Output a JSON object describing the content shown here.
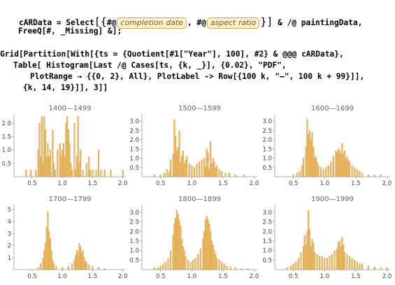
{
  "code": {
    "line1a": "cARData = Select",
    "line1b": "#@",
    "chip1": "completion date",
    "line1c": ", #@",
    "chip2": "aspect ratio",
    "line1d": "& /@ paintingData,",
    "line2": "FreeQ[#, _Missing] &];",
    "line3": "Grid[Partition[With[{ts = {Quotient[#1[\"Year\"], 100], #2} & @@@ cARData},",
    "line4": "Table[ Histogram[Last /@ Cases[ts, {k, _}], {0.02}, \"PDF\",",
    "line5": "PlotRange → {{0, 2}, All}, PlotLabel -> Row[{100 k, \"—\", 100 k + 99}]],",
    "line6": "{k, 14, 19}]], 3]]"
  },
  "chart_data": [
    {
      "type": "bar",
      "title": "1400—1499",
      "xlim": [
        0.2,
        2.05
      ],
      "ylim": [
        0,
        2.35
      ],
      "x_ticks": [
        0.5,
        1.0,
        1.5,
        2.0
      ],
      "y_ticks": [
        0.5,
        1.0,
        1.5,
        2.0
      ],
      "x": [
        0.4,
        0.48,
        0.56,
        0.6,
        0.62,
        0.64,
        0.66,
        0.68,
        0.7,
        0.72,
        0.74,
        0.76,
        0.78,
        0.8,
        0.84,
        0.86,
        0.88,
        0.92,
        0.96,
        0.98,
        1.0,
        1.02,
        1.04,
        1.06,
        1.08,
        1.1,
        1.12,
        1.14,
        1.16,
        1.2,
        1.22,
        1.24,
        1.26,
        1.28,
        1.3,
        1.34,
        1.4,
        1.44,
        1.46,
        1.5,
        1.56,
        1.6,
        1.64,
        1.7,
        1.8,
        2.0
      ],
      "values": [
        0.25,
        0.25,
        0.25,
        1.0,
        2.0,
        0.75,
        2.25,
        0.5,
        2.25,
        1.75,
        0.75,
        1.25,
        0.75,
        1.0,
        1.75,
        0.5,
        0.25,
        1.0,
        1.25,
        0.75,
        1.0,
        1.25,
        0.75,
        2.0,
        2.25,
        1.75,
        1.25,
        0.5,
        0.25,
        2.0,
        0.25,
        0.75,
        2.25,
        0.5,
        1.0,
        0.25,
        0.5,
        0.75,
        0.25,
        0.25,
        0.25,
        1.0,
        0.25,
        0.25,
        0.25,
        0.25
      ]
    },
    {
      "type": "bar",
      "title": "1500—1599",
      "xlim": [
        0.2,
        2.05
      ],
      "ylim": [
        0,
        3.4
      ],
      "x_ticks": [
        0.5,
        1.0,
        1.5,
        2.0
      ],
      "y_ticks": [
        0.5,
        1.0,
        1.5,
        2.0,
        2.5,
        3.0
      ],
      "x": [
        0.4,
        0.5,
        0.56,
        0.6,
        0.64,
        0.66,
        0.7,
        0.72,
        0.74,
        0.76,
        0.78,
        0.8,
        0.82,
        0.84,
        0.86,
        0.88,
        0.9,
        0.92,
        0.96,
        1.0,
        1.04,
        1.08,
        1.12,
        1.16,
        1.2,
        1.22,
        1.24,
        1.26,
        1.28,
        1.3,
        1.32,
        1.34,
        1.36,
        1.38,
        1.4,
        1.44,
        1.48,
        1.54,
        1.6,
        1.7,
        1.84
      ],
      "values": [
        0.1,
        0.1,
        0.2,
        0.4,
        0.3,
        0.9,
        1.2,
        3.1,
        2.2,
        1.4,
        1.6,
        2.5,
        0.8,
        1.1,
        1.4,
        0.7,
        0.9,
        1.1,
        0.7,
        0.6,
        0.5,
        0.7,
        0.8,
        0.9,
        1.0,
        0.5,
        1.5,
        1.3,
        0.4,
        1.9,
        0.7,
        1.0,
        0.8,
        0.5,
        0.6,
        0.4,
        0.3,
        0.2,
        0.2,
        0.1,
        0.1
      ]
    },
    {
      "type": "bar",
      "title": "1600—1699",
      "xlim": [
        0.2,
        2.05
      ],
      "ylim": [
        0,
        3.4
      ],
      "x_ticks": [
        0.5,
        1.0,
        1.5,
        2.0
      ],
      "y_ticks": [
        0.5,
        1.0,
        1.5,
        2.0,
        2.5,
        3.0
      ],
      "x": [
        0.5,
        0.56,
        0.6,
        0.64,
        0.66,
        0.7,
        0.72,
        0.74,
        0.76,
        0.78,
        0.8,
        0.82,
        0.84,
        0.86,
        0.88,
        0.9,
        0.94,
        0.98,
        1.02,
        1.06,
        1.1,
        1.14,
        1.18,
        1.2,
        1.22,
        1.24,
        1.26,
        1.28,
        1.3,
        1.32,
        1.34,
        1.36,
        1.38,
        1.4,
        1.44,
        1.48,
        1.52,
        1.56,
        1.6,
        1.7,
        1.8,
        1.9
      ],
      "values": [
        0.1,
        0.2,
        0.3,
        0.6,
        1.0,
        1.6,
        3.1,
        2.3,
        2.5,
        2.0,
        2.4,
        1.6,
        1.0,
        1.1,
        0.8,
        0.6,
        0.5,
        0.4,
        0.5,
        0.6,
        0.8,
        1.1,
        1.4,
        1.3,
        1.5,
        1.4,
        1.2,
        1.8,
        1.2,
        1.4,
        1.0,
        1.1,
        0.9,
        0.8,
        0.6,
        0.5,
        0.4,
        0.3,
        0.2,
        0.1,
        0.1,
        0.1
      ]
    },
    {
      "type": "bar",
      "title": "1700—1799",
      "xlim": [
        0.2,
        2.05
      ],
      "ylim": [
        0,
        5.4
      ],
      "x_ticks": [
        0.5,
        1.0,
        1.5,
        2.0
      ],
      "y_ticks": [
        1,
        2,
        3,
        4,
        5
      ],
      "x": [
        0.6,
        0.64,
        0.68,
        0.7,
        0.72,
        0.74,
        0.76,
        0.78,
        0.8,
        0.82,
        0.84,
        0.86,
        0.9,
        1.0,
        1.1,
        1.16,
        1.2,
        1.22,
        1.24,
        1.26,
        1.28,
        1.3,
        1.32,
        1.34,
        1.36,
        1.38,
        1.4,
        1.44,
        1.5,
        1.6,
        1.7
      ],
      "values": [
        0.2,
        0.5,
        0.9,
        1.6,
        2.2,
        3.5,
        4.8,
        3.2,
        2.6,
        1.6,
        0.8,
        0.5,
        0.3,
        0.2,
        0.3,
        0.5,
        0.8,
        1.2,
        1.6,
        1.4,
        2.2,
        1.9,
        1.4,
        1.6,
        1.0,
        0.7,
        0.6,
        0.4,
        0.3,
        0.2,
        0.1
      ]
    },
    {
      "type": "bar",
      "title": "1800—1899",
      "xlim": [
        0.2,
        2.05
      ],
      "ylim": [
        0,
        3.4
      ],
      "x_ticks": [
        0.5,
        1.0,
        1.5,
        2.0
      ],
      "y_ticks": [
        0.5,
        1.0,
        1.5,
        2.0,
        2.5,
        3.0
      ],
      "x": [
        0.4,
        0.46,
        0.5,
        0.54,
        0.58,
        0.62,
        0.66,
        0.7,
        0.72,
        0.74,
        0.76,
        0.78,
        0.8,
        0.82,
        0.84,
        0.86,
        0.88,
        0.9,
        0.94,
        0.98,
        1.02,
        1.06,
        1.1,
        1.14,
        1.18,
        1.2,
        1.22,
        1.24,
        1.26,
        1.28,
        1.3,
        1.32,
        1.34,
        1.36,
        1.38,
        1.4,
        1.44,
        1.48,
        1.52,
        1.56,
        1.62,
        1.7,
        1.8,
        1.9
      ],
      "values": [
        0.1,
        0.1,
        0.2,
        0.3,
        0.4,
        0.6,
        1.0,
        1.8,
        2.4,
        2.7,
        3.1,
        2.9,
        2.6,
        2.3,
        1.6,
        1.2,
        1.0,
        0.7,
        0.5,
        0.4,
        0.5,
        0.6,
        0.8,
        1.1,
        1.6,
        2.0,
        2.6,
        2.8,
        2.6,
        2.4,
        2.0,
        1.5,
        1.3,
        1.0,
        0.8,
        0.6,
        0.5,
        0.4,
        0.3,
        0.2,
        0.15,
        0.1,
        0.05,
        0.05
      ]
    },
    {
      "type": "bar",
      "title": "1900—1999",
      "xlim": [
        0.2,
        2.05
      ],
      "ylim": [
        0,
        3.4
      ],
      "x_ticks": [
        0.5,
        1.0,
        1.5,
        2.0
      ],
      "y_ticks": [
        0.5,
        1.0,
        1.5,
        2.0,
        2.5,
        3.0
      ],
      "x": [
        0.4,
        0.46,
        0.5,
        0.54,
        0.58,
        0.62,
        0.66,
        0.68,
        0.7,
        0.72,
        0.74,
        0.76,
        0.78,
        0.8,
        0.82,
        0.84,
        0.88,
        0.92,
        0.96,
        1.0,
        1.04,
        1.08,
        1.12,
        1.16,
        1.2,
        1.22,
        1.24,
        1.26,
        1.28,
        1.3,
        1.32,
        1.36,
        1.4,
        1.44,
        1.48,
        1.52,
        1.56,
        1.6,
        1.7,
        1.8,
        1.9,
        2.0
      ],
      "values": [
        0.1,
        0.2,
        0.3,
        0.4,
        0.6,
        0.9,
        1.2,
        1.8,
        1.3,
        2.0,
        3.1,
        2.1,
        1.2,
        1.6,
        1.4,
        0.9,
        0.8,
        0.7,
        0.7,
        0.6,
        0.6,
        0.7,
        0.8,
        1.0,
        1.1,
        1.4,
        1.5,
        1.2,
        1.7,
        1.3,
        0.9,
        0.8,
        0.7,
        0.6,
        0.5,
        0.4,
        0.3,
        0.3,
        0.2,
        0.15,
        0.1,
        0.1
      ]
    }
  ],
  "colors": {
    "bar_fill": "#f0c070",
    "bar_stroke": "#c8902c",
    "axis": "#999999"
  }
}
